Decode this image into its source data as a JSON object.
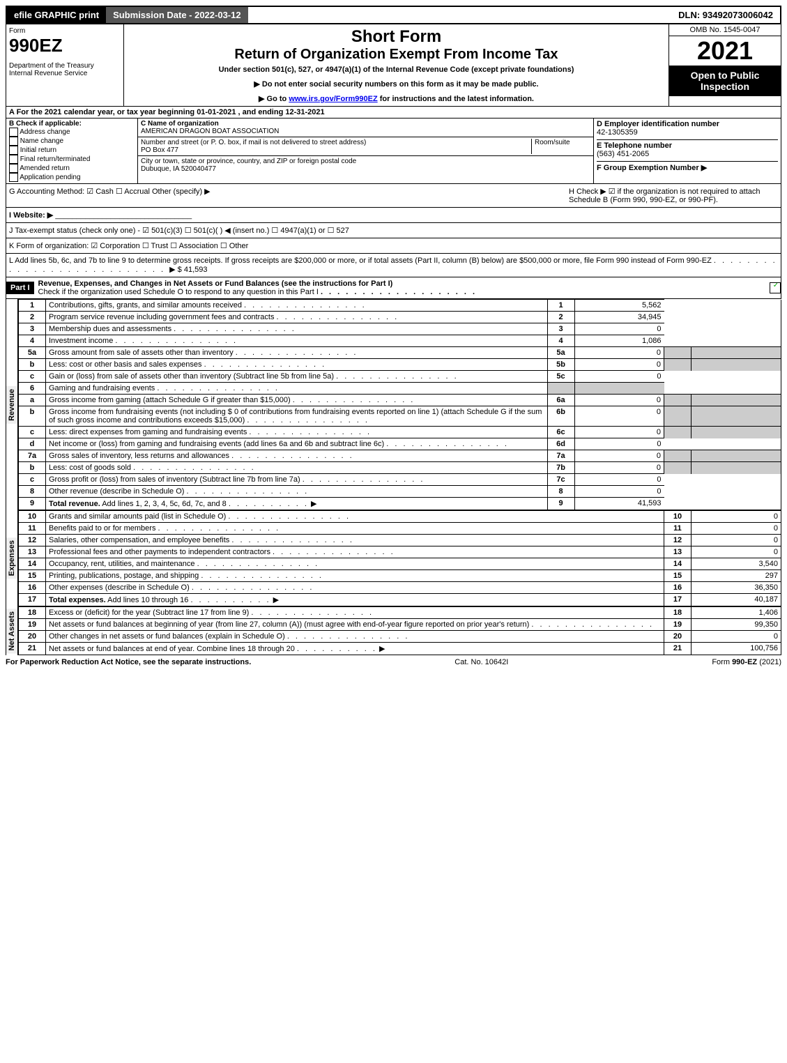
{
  "topbar": {
    "efile": "efile GRAPHIC print",
    "subdate": "Submission Date - 2022-03-12",
    "dln": "DLN: 93492073006042"
  },
  "header": {
    "form": "Form",
    "num": "990EZ",
    "dept": "Department of the Treasury\nInternal Revenue Service",
    "short": "Short Form",
    "title": "Return of Organization Exempt From Income Tax",
    "sub1": "Under section 501(c), 527, or 4947(a)(1) of the Internal Revenue Code (except private foundations)",
    "sub2": "▶ Do not enter social security numbers on this form as it may be made public.",
    "sub3": "▶ Go to www.irs.gov/Form990EZ for instructions and the latest information.",
    "omb": "OMB No. 1545-0047",
    "year": "2021",
    "open": "Open to Public Inspection"
  },
  "a": "A  For the 2021 calendar year, or tax year beginning 01-01-2021 , and ending 12-31-2021",
  "b": {
    "label": "B  Check if applicable:",
    "opts": [
      "Address change",
      "Name change",
      "Initial return",
      "Final return/terminated",
      "Amended return",
      "Application pending"
    ]
  },
  "c": {
    "namelbl": "C Name of organization",
    "name": "AMERICAN DRAGON BOAT ASSOCIATION",
    "addrlbl": "Number and street (or P. O. box, if mail is not delivered to street address)",
    "room": "Room/suite",
    "addr": "PO Box 477",
    "citylbl": "City or town, state or province, country, and ZIP or foreign postal code",
    "city": "Dubuque, IA  520040477"
  },
  "d": {
    "lbl": "D Employer identification number",
    "val": "42-1305359"
  },
  "e": {
    "lbl": "E Telephone number",
    "val": "(563) 451-2065"
  },
  "f": {
    "lbl": "F Group Exemption Number  ▶"
  },
  "g": "G Accounting Method:   ☑ Cash  ☐ Accrual   Other (specify) ▶",
  "h": "H  Check ▶ ☑ if the organization is not required to attach Schedule B (Form 990, 990-EZ, or 990-PF).",
  "i": "I Website: ▶",
  "j": "J Tax-exempt status (check only one) - ☑ 501(c)(3) ☐ 501(c)(  ) ◀ (insert no.) ☐ 4947(a)(1) or ☐ 527",
  "k": "K Form of organization:  ☑ Corporation  ☐ Trust  ☐ Association  ☐ Other",
  "l": {
    "text": "L Add lines 5b, 6c, and 7b to line 9 to determine gross receipts. If gross receipts are $200,000 or more, or if total assets (Part II, column (B) below) are $500,000 or more, file Form 990 instead of Form 990-EZ",
    "amt": "▶ $ 41,593"
  },
  "part1": {
    "hdr": "Part I",
    "title": "Revenue, Expenses, and Changes in Net Assets or Fund Balances (see the instructions for Part I)",
    "chk": "Check if the organization used Schedule O to respond to any question in this Part I"
  },
  "sides": {
    "rev": "Revenue",
    "exp": "Expenses",
    "net": "Net Assets"
  },
  "rows": [
    {
      "n": "1",
      "d": "Contributions, gifts, grants, and similar amounts received",
      "ln": "1",
      "v": "5,562"
    },
    {
      "n": "2",
      "d": "Program service revenue including government fees and contracts",
      "ln": "2",
      "v": "34,945"
    },
    {
      "n": "3",
      "d": "Membership dues and assessments",
      "ln": "3",
      "v": "0"
    },
    {
      "n": "4",
      "d": "Investment income",
      "ln": "4",
      "v": "1,086"
    },
    {
      "n": "5a",
      "d": "Gross amount from sale of assets other than inventory",
      "sub": "5a",
      "sv": "0",
      "gray": true
    },
    {
      "n": "b",
      "d": "Less: cost or other basis and sales expenses",
      "sub": "5b",
      "sv": "0",
      "gray": true
    },
    {
      "n": "c",
      "d": "Gain or (loss) from sale of assets other than inventory (Subtract line 5b from line 5a)",
      "ln": "5c",
      "v": "0"
    },
    {
      "n": "6",
      "d": "Gaming and fundraising events",
      "gray": true,
      "noline": true
    },
    {
      "n": "a",
      "d": "Gross income from gaming (attach Schedule G if greater than $15,000)",
      "sub": "6a",
      "sv": "0",
      "gray": true
    },
    {
      "n": "b",
      "d": "Gross income from fundraising events (not including $ 0 of contributions from fundraising events reported on line 1) (attach Schedule G if the sum of such gross income and contributions exceeds $15,000)",
      "sub": "6b",
      "sv": "0",
      "gray": true
    },
    {
      "n": "c",
      "d": "Less: direct expenses from gaming and fundraising events",
      "sub": "6c",
      "sv": "0",
      "gray": true
    },
    {
      "n": "d",
      "d": "Net income or (loss) from gaming and fundraising events (add lines 6a and 6b and subtract line 6c)",
      "ln": "6d",
      "v": "0"
    },
    {
      "n": "7a",
      "d": "Gross sales of inventory, less returns and allowances",
      "sub": "7a",
      "sv": "0",
      "gray": true
    },
    {
      "n": "b",
      "d": "Less: cost of goods sold",
      "sub": "7b",
      "sv": "0",
      "gray": true
    },
    {
      "n": "c",
      "d": "Gross profit or (loss) from sales of inventory (Subtract line 7b from line 7a)",
      "ln": "7c",
      "v": "0"
    },
    {
      "n": "8",
      "d": "Other revenue (describe in Schedule O)",
      "ln": "8",
      "v": "0"
    },
    {
      "n": "9",
      "d": "Total revenue. Add lines 1, 2, 3, 4, 5c, 6d, 7c, and 8",
      "ln": "9",
      "v": "41,593",
      "bold": true,
      "arrow": true
    }
  ],
  "exprows": [
    {
      "n": "10",
      "d": "Grants and similar amounts paid (list in Schedule O)",
      "ln": "10",
      "v": "0"
    },
    {
      "n": "11",
      "d": "Benefits paid to or for members",
      "ln": "11",
      "v": "0"
    },
    {
      "n": "12",
      "d": "Salaries, other compensation, and employee benefits",
      "ln": "12",
      "v": "0"
    },
    {
      "n": "13",
      "d": "Professional fees and other payments to independent contractors",
      "ln": "13",
      "v": "0"
    },
    {
      "n": "14",
      "d": "Occupancy, rent, utilities, and maintenance",
      "ln": "14",
      "v": "3,540"
    },
    {
      "n": "15",
      "d": "Printing, publications, postage, and shipping",
      "ln": "15",
      "v": "297"
    },
    {
      "n": "16",
      "d": "Other expenses (describe in Schedule O)",
      "ln": "16",
      "v": "36,350"
    },
    {
      "n": "17",
      "d": "Total expenses. Add lines 10 through 16",
      "ln": "17",
      "v": "40,187",
      "bold": true,
      "arrow": true
    }
  ],
  "netrows": [
    {
      "n": "18",
      "d": "Excess or (deficit) for the year (Subtract line 17 from line 9)",
      "ln": "18",
      "v": "1,406"
    },
    {
      "n": "19",
      "d": "Net assets or fund balances at beginning of year (from line 27, column (A)) (must agree with end-of-year figure reported on prior year's return)",
      "ln": "19",
      "v": "99,350"
    },
    {
      "n": "20",
      "d": "Other changes in net assets or fund balances (explain in Schedule O)",
      "ln": "20",
      "v": "0"
    },
    {
      "n": "21",
      "d": "Net assets or fund balances at end of year. Combine lines 18 through 20",
      "ln": "21",
      "v": "100,756",
      "arrow": true
    }
  ],
  "footer": {
    "left": "For Paperwork Reduction Act Notice, see the separate instructions.",
    "mid": "Cat. No. 10642I",
    "right": "Form 990-EZ (2021)"
  }
}
